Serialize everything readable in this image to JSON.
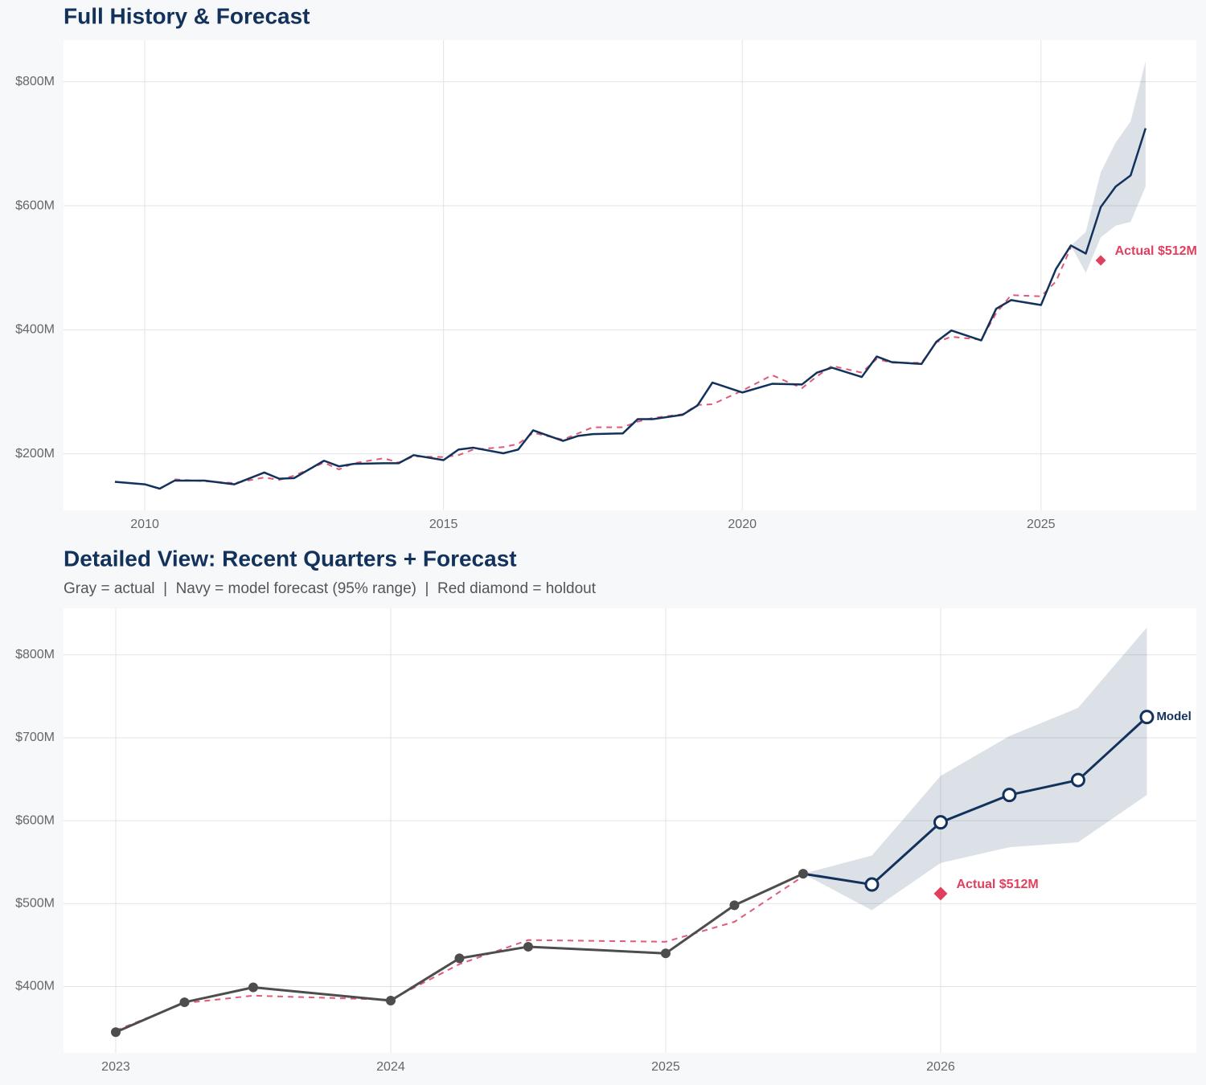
{
  "chart_data": [
    {
      "type": "line",
      "title": "Full History & Forecast",
      "xlim": [
        2008.64,
        2027.6
      ],
      "ylim": [
        109,
        867
      ],
      "xticks": [
        2010,
        2015,
        2020,
        2025
      ],
      "yticks": [
        {
          "value": 200,
          "label": "$200M"
        },
        {
          "value": 400,
          "label": "$400M"
        },
        {
          "value": 600,
          "label": "$600M"
        },
        {
          "value": 800,
          "label": "$800M"
        }
      ],
      "grid": true,
      "band": {
        "color": "#12325c",
        "x": [
          2025.5,
          2025.75,
          2026,
          2026.25,
          2026.5,
          2026.75
        ],
        "lower": [
          536,
          492,
          549,
          568,
          574,
          631
        ],
        "upper": [
          536,
          558,
          654,
          702,
          736,
          833
        ]
      },
      "series": [
        {
          "color": "#e05a78",
          "style": "dashed",
          "x": [
            2010.5,
            2011,
            2011.5,
            2012,
            2012.25,
            2012.5,
            2013,
            2013.25,
            2013.5,
            2014,
            2014.25,
            2014.5,
            2015,
            2015.25,
            2015.5,
            2016,
            2016.25,
            2016.5,
            2017,
            2017.25,
            2017.5,
            2018,
            2018.25,
            2018.5,
            2019,
            2019.25,
            2019.5,
            2020,
            2020.5,
            2021,
            2021.25,
            2021.5,
            2022,
            2022.25,
            2022.5,
            2023,
            2023.25,
            2023.5,
            2024,
            2024.25,
            2024.5,
            2025,
            2025.25,
            2025.5
          ],
          "values": [
            159,
            156,
            153,
            162,
            158,
            165,
            186,
            175,
            185,
            193,
            186,
            196,
            195,
            198,
            207,
            211,
            216,
            234,
            223,
            233,
            243,
            243,
            252,
            258,
            264,
            279,
            280,
            302,
            327,
            306,
            325,
            342,
            331,
            353,
            347,
            347,
            380,
            389,
            384,
            427,
            456,
            454,
            478,
            533
          ]
        },
        {
          "color": "#12325c",
          "style": "solid",
          "x": [
            2009.5,
            2010,
            2010.25,
            2010.5,
            2011,
            2011.5,
            2012,
            2012.25,
            2012.5,
            2013,
            2013.25,
            2013.5,
            2014,
            2014.25,
            2014.5,
            2015,
            2015.25,
            2015.5,
            2016,
            2016.25,
            2016.5,
            2017,
            2017.25,
            2017.5,
            2018,
            2018.25,
            2018.5,
            2019,
            2019.25,
            2019.5,
            2020,
            2020.5,
            2021,
            2021.25,
            2021.5,
            2022,
            2022.25,
            2022.5,
            2023,
            2023.25,
            2023.5,
            2024,
            2024.25,
            2024.5,
            2025,
            2025.25,
            2025.5,
            2025.75,
            2026,
            2026.25,
            2026.5,
            2026.75
          ],
          "values": [
            155,
            151,
            144,
            157,
            157,
            151,
            170,
            160,
            161,
            189,
            180,
            184,
            185,
            185,
            198,
            190,
            207,
            210,
            201,
            207,
            238,
            221,
            229,
            232,
            233,
            256,
            256,
            263,
            278,
            315,
            299,
            313,
            312,
            331,
            339,
            324,
            357,
            348,
            345,
            381,
            399,
            383,
            434,
            448,
            440,
            498,
            536,
            523,
            598,
            631,
            649,
            725
          ]
        }
      ],
      "holdout": {
        "x": 2026,
        "value": 512,
        "label": "Actual $512M",
        "color": "#e0405f"
      }
    },
    {
      "type": "line",
      "title": "Detailed View: Recent Quarters + Forecast",
      "subtitle": "Gray = actual  |  Navy = model forecast (95% range)  |  Red diamond = holdout",
      "xlim": [
        2022.81,
        2026.93
      ],
      "ylim": [
        320,
        856
      ],
      "xticks": [
        2023,
        2024,
        2025,
        2026
      ],
      "yticks": [
        {
          "value": 400,
          "label": "$400M"
        },
        {
          "value": 500,
          "label": "$500M"
        },
        {
          "value": 600,
          "label": "$600M"
        },
        {
          "value": 700,
          "label": "$700M"
        },
        {
          "value": 800,
          "label": "$800M"
        }
      ],
      "grid": true,
      "band": {
        "color": "#12325c",
        "x": [
          2025.5,
          2025.75,
          2026,
          2026.25,
          2026.5,
          2026.75
        ],
        "lower": [
          536,
          492,
          549,
          568,
          574,
          631
        ],
        "upper": [
          536,
          558,
          654,
          702,
          736,
          833
        ]
      },
      "series": [
        {
          "color": "#e05a78",
          "style": "dashed",
          "x": [
            2023,
            2023.25,
            2023.5,
            2024,
            2024.25,
            2024.5,
            2025,
            2025.25,
            2025.5
          ],
          "values": [
            347,
            380,
            389,
            384,
            427,
            456,
            454,
            478,
            533
          ]
        },
        {
          "color": "#4d4d4d",
          "style": "solid",
          "markers": "filled",
          "x": [
            2023,
            2023.25,
            2023.5,
            2024,
            2024.25,
            2024.5,
            2025,
            2025.25,
            2025.5
          ],
          "values": [
            345,
            381,
            399,
            383,
            434,
            448,
            440,
            498,
            536
          ]
        },
        {
          "color": "#12325c",
          "style": "solid",
          "markers": "hollow",
          "joins_previous": true,
          "end_label": "Model",
          "x": [
            2025.75,
            2026,
            2026.25,
            2026.5,
            2026.75
          ],
          "values": [
            523,
            598,
            631,
            649,
            725
          ]
        }
      ],
      "holdout": {
        "x": 2026,
        "value": 512,
        "label": "Actual $512M",
        "color": "#e0405f"
      }
    }
  ]
}
